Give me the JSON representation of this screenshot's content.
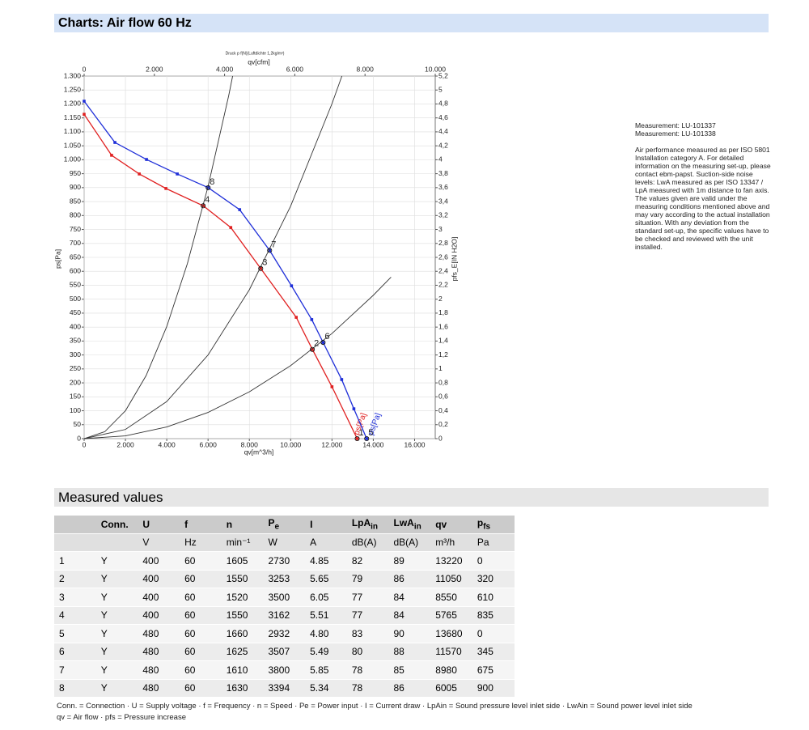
{
  "header": {
    "title": "Charts: Air flow 60 Hz"
  },
  "chart_data": {
    "type": "line",
    "title": "Druck p f(N)(Luftdichte 1,2kg/m³)",
    "xlabel": "qv[m^3/h]",
    "x2label": "qv[cfm]",
    "ylabel": "ps[Pa]",
    "y2label": "pfs_E[IN H2O]",
    "xlim": [
      0,
      17000
    ],
    "x2lim": [
      0,
      10000
    ],
    "ylim": [
      0,
      1300
    ],
    "y2lim": [
      0,
      5.2
    ],
    "grid": true,
    "xticks": [
      0,
      {
        "value": 2000,
        "label": "2.000"
      },
      {
        "value": 4000,
        "label": "4.000"
      },
      {
        "value": 6000,
        "label": "6.000"
      },
      {
        "value": 8000,
        "label": "8.000"
      },
      {
        "value": 10000,
        "label": "10.000"
      },
      {
        "value": 12000,
        "label": "12.000"
      },
      {
        "value": 14000,
        "label": "14.000"
      },
      {
        "value": 16000,
        "label": "16.000"
      }
    ],
    "x2ticks": [
      0,
      {
        "value": 2000,
        "label": "2.000"
      },
      {
        "value": 4000,
        "label": "4.000"
      },
      {
        "value": 6000,
        "label": "6.000"
      },
      {
        "value": 8000,
        "label": "8.000"
      },
      {
        "value": 10000,
        "label": "10.000"
      }
    ],
    "yticks": [
      0,
      50,
      100,
      150,
      200,
      250,
      300,
      350,
      400,
      450,
      500,
      550,
      600,
      650,
      700,
      750,
      800,
      850,
      900,
      950,
      {
        "value": 1000,
        "label": "1.000"
      },
      {
        "value": 1050,
        "label": "1.050"
      },
      {
        "value": 1100,
        "label": "1.100"
      },
      {
        "value": 1150,
        "label": "1.150"
      },
      {
        "value": 1200,
        "label": "1.200"
      },
      {
        "value": 1250,
        "label": "1.250"
      },
      {
        "value": 1300,
        "label": "1.300"
      }
    ],
    "y2ticks": [
      0,
      {
        "value": 0.2,
        "label": "0,2"
      },
      {
        "value": 0.4,
        "label": "0,4"
      },
      {
        "value": 0.6,
        "label": "0,6"
      },
      {
        "value": 0.8,
        "label": "0,8"
      },
      1,
      {
        "value": 1.2,
        "label": "1,2"
      },
      {
        "value": 1.4,
        "label": "1,4"
      },
      {
        "value": 1.6,
        "label": "1,6"
      },
      {
        "value": 1.8,
        "label": "1,8"
      },
      2,
      {
        "value": 2.2,
        "label": "2,2"
      },
      {
        "value": 2.4,
        "label": "2,4"
      },
      {
        "value": 2.6,
        "label": "2,6"
      },
      {
        "value": 2.8,
        "label": "2,8"
      },
      3,
      {
        "value": 3.2,
        "label": "3,2"
      },
      {
        "value": 3.4,
        "label": "3,4"
      },
      {
        "value": 3.6,
        "label": "3,6"
      },
      {
        "value": 3.8,
        "label": "3,8"
      },
      4,
      {
        "value": 4.2,
        "label": "4,2"
      },
      {
        "value": 4.4,
        "label": "4,4"
      },
      {
        "value": 4.6,
        "label": "4,6"
      },
      {
        "value": 4.8,
        "label": "4,8"
      },
      5,
      {
        "value": 5.2,
        "label": "5,2"
      }
    ],
    "series": [
      {
        "name": "ps[Pa]",
        "color": "#e02020",
        "x": [
          0,
          1330,
          2670,
          3960,
          5765,
          7100,
          8550,
          10270,
          11050,
          12000,
          13220
        ],
        "values": [
          1163,
          1016,
          949,
          897,
          835,
          757,
          610,
          435,
          320,
          186,
          0
        ]
      },
      {
        "name": "ps[Pa]",
        "color": "#1f2fd8",
        "x": [
          0,
          1490,
          3020,
          4510,
          6005,
          7530,
          8980,
          10040,
          11020,
          11570,
          12470,
          13060,
          13680
        ],
        "values": [
          1210,
          1062,
          1001,
          949,
          900,
          821,
          675,
          548,
          427,
          345,
          212,
          107,
          0
        ]
      },
      {
        "color": "#333333",
        "x": [
          0,
          1000,
          2000,
          3000,
          4000,
          5000,
          6000,
          7000,
          7190
        ],
        "values": [
          0,
          25,
          100,
          226,
          402,
          628,
          904,
          1230,
          1300
        ]
      },
      {
        "color": "#333333",
        "x": [
          0,
          2000,
          4000,
          6000,
          8000,
          10000,
          12000,
          12480
        ],
        "values": [
          0,
          33,
          133,
          300,
          534,
          834,
          1201,
          1300
        ]
      },
      {
        "color": "#333333",
        "x": [
          0,
          2000,
          4000,
          6000,
          8000,
          10000,
          12000,
          14000,
          14860
        ],
        "values": [
          0,
          10,
          42,
          94,
          168,
          262,
          377,
          514,
          579
        ]
      }
    ],
    "points": [
      {
        "label": "1",
        "x": 13220,
        "y": 0
      },
      {
        "label": "2",
        "x": 11050,
        "y": 320
      },
      {
        "label": "3",
        "x": 8550,
        "y": 610
      },
      {
        "label": "4",
        "x": 5765,
        "y": 835
      },
      {
        "label": "5",
        "x": 13680,
        "y": 0
      },
      {
        "label": "6",
        "x": 11570,
        "y": 345
      },
      {
        "label": "7",
        "x": 8980,
        "y": 675
      },
      {
        "label": "8",
        "x": 6005,
        "y": 900
      }
    ]
  },
  "notes": [
    "Measurement: LU-101337",
    "Measurement: LU-101338",
    "Air performance measured as per ISO 5801 Installation category A. For detailed information on the measuring set-up, please contact ebm-papst. Suction-side noise levels: LwA measured as per ISO 13347 / LpA measured with 1m distance to fan axis. The values given are valid under the measuring conditions mentioned above and may vary according to the actual installation situation. With any deviation from the standard set-up, the specific values have to be checked and reviewed with the unit installed."
  ],
  "table": {
    "title": "Measured values",
    "header": [
      {
        "text": "Conn."
      },
      {
        "text": "U"
      },
      {
        "text": "f"
      },
      {
        "text": "n"
      },
      {
        "text": "P",
        "sub": "e"
      },
      {
        "text": "I"
      },
      {
        "text": "LpA",
        "sub": "in"
      },
      {
        "text": "LwA",
        "sub": "in"
      },
      {
        "text": "qv"
      },
      {
        "text": "p",
        "sub": "fs"
      }
    ],
    "units": [
      "V",
      "Hz",
      "min⁻¹",
      "W",
      "A",
      "dB(A)",
      "dB(A)",
      "m³/h",
      "Pa"
    ],
    "rows": [
      [
        "1",
        "Y",
        "400",
        "60",
        "1605",
        "2730",
        "4.85",
        "82",
        "89",
        "13220",
        "0"
      ],
      [
        "2",
        "Y",
        "400",
        "60",
        "1550",
        "3253",
        "5.65",
        "79",
        "86",
        "11050",
        "320"
      ],
      [
        "3",
        "Y",
        "400",
        "60",
        "1520",
        "3500",
        "6.05",
        "77",
        "84",
        "8550",
        "610"
      ],
      [
        "4",
        "Y",
        "400",
        "60",
        "1550",
        "3162",
        "5.51",
        "77",
        "84",
        "5765",
        "835"
      ],
      [
        "5",
        "Y",
        "480",
        "60",
        "1660",
        "2932",
        "4.80",
        "83",
        "90",
        "13680",
        "0"
      ],
      [
        "6",
        "Y",
        "480",
        "60",
        "1625",
        "3507",
        "5.49",
        "80",
        "88",
        "11570",
        "345"
      ],
      [
        "7",
        "Y",
        "480",
        "60",
        "1610",
        "3800",
        "5.85",
        "78",
        "85",
        "8980",
        "675"
      ],
      [
        "8",
        "Y",
        "480",
        "60",
        "1630",
        "3394",
        "5.34",
        "78",
        "86",
        "6005",
        "900"
      ]
    ]
  },
  "footnote": [
    "Conn. = Connection · U = Supply voltage · f = Frequency · n = Speed · Pe = Power input · I = Current draw · LpAin = Sound pressure level inlet side · LwAin = Sound power level inlet side",
    "qv = Air flow · pfs = Pressure increase"
  ]
}
